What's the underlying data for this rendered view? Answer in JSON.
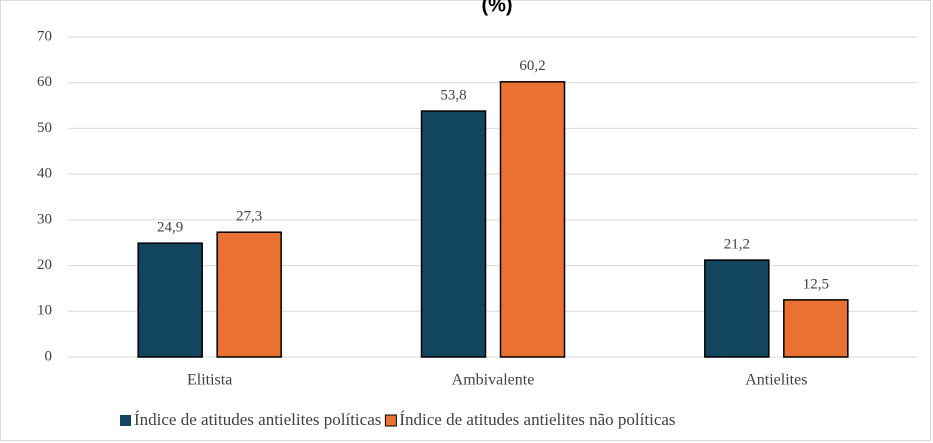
{
  "chart_data": {
    "type": "bar",
    "title": "(%)",
    "categories": [
      "Elitista",
      "Ambivalente",
      "Antielites"
    ],
    "series": [
      {
        "name": "Índice de atitudes antielites políticas",
        "color": "#124560",
        "values": [
          24.9,
          53.8,
          21.2
        ],
        "value_labels": [
          "24,9",
          "53,8",
          "21,2"
        ]
      },
      {
        "name": "Índice de atitudes antielites não políticas",
        "color": "#e97132",
        "values": [
          27.3,
          60.2,
          12.5
        ],
        "value_labels": [
          "27,3",
          "60,2",
          "12,5"
        ]
      }
    ],
    "ylim": [
      0,
      70
    ],
    "yticks": [
      0,
      10,
      20,
      30,
      40,
      50,
      60,
      70
    ],
    "grid": true,
    "legend": "bottom"
  }
}
